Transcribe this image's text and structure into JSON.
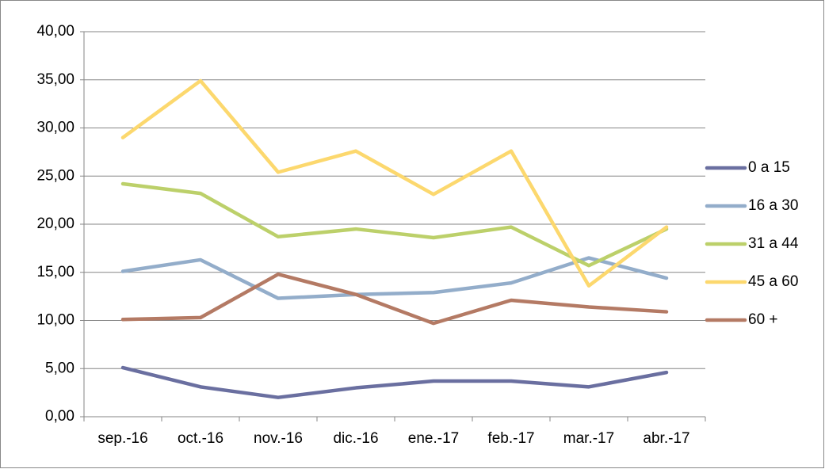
{
  "chart_data": {
    "type": "line",
    "categories": [
      "sep.-16",
      "oct.-16",
      "nov.-16",
      "dic.-16",
      "ene.-17",
      "feb.-17",
      "mar.-17",
      "abr.-17"
    ],
    "series": [
      {
        "name": "0 a 15",
        "color": "#6a6fa0",
        "values": [
          5.1,
          3.1,
          2.0,
          3.0,
          3.7,
          3.7,
          3.1,
          4.6
        ]
      },
      {
        "name": "16 a 30",
        "color": "#93adca",
        "values": [
          15.1,
          16.3,
          12.3,
          12.7,
          12.9,
          13.9,
          16.5,
          14.4
        ]
      },
      {
        "name": "31 a 44",
        "color": "#bcd06a",
        "values": [
          24.2,
          23.2,
          18.7,
          19.5,
          18.6,
          19.7,
          15.7,
          19.5
        ]
      },
      {
        "name": "45 a 60",
        "color": "#fcd86e",
        "values": [
          29.0,
          34.9,
          25.4,
          27.6,
          23.1,
          27.6,
          13.6,
          19.7
        ]
      },
      {
        "name": "60 +",
        "color": "#b47a64",
        "values": [
          10.1,
          10.3,
          14.8,
          12.7,
          9.7,
          12.1,
          11.4,
          10.9
        ]
      }
    ],
    "ylim": [
      0,
      40
    ],
    "yticks": [
      {
        "value": 0,
        "label": "0,00"
      },
      {
        "value": 5,
        "label": "5,00"
      },
      {
        "value": 10,
        "label": "10,00"
      },
      {
        "value": 15,
        "label": "15,00"
      },
      {
        "value": 20,
        "label": "20,00"
      },
      {
        "value": 25,
        "label": "25,00"
      },
      {
        "value": 30,
        "label": "30,00"
      },
      {
        "value": 35,
        "label": "35,00"
      },
      {
        "value": 40,
        "label": "40,00"
      }
    ],
    "grid": true,
    "legend": "right"
  }
}
